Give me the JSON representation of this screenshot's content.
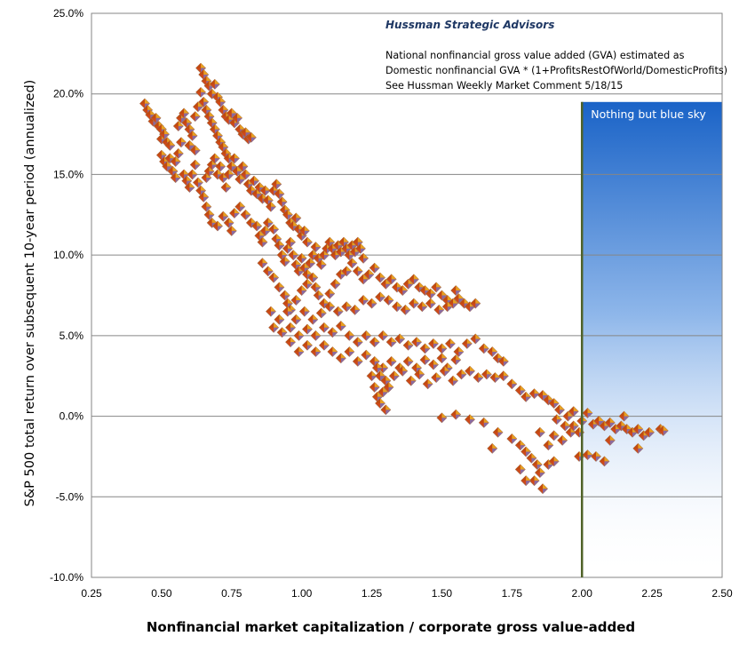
{
  "chart_data": {
    "type": "scatter",
    "title": "",
    "xlabel": "Nonfinancial market capitalization / corporate gross value-added",
    "ylabel": "S&P 500 total return over subsequent 10-year period (annualized)",
    "xlim": [
      0.25,
      2.5
    ],
    "ylim": [
      -0.1,
      0.25
    ],
    "x_ticks": [
      0.25,
      0.5,
      0.75,
      1.0,
      1.25,
      1.5,
      1.75,
      2.0,
      2.25,
      2.5
    ],
    "x_tick_labels": [
      "0.25",
      "0.50",
      "0.75",
      "1.00",
      "1.25",
      "1.50",
      "1.75",
      "2.00",
      "2.25",
      "2.50"
    ],
    "y_ticks": [
      -0.1,
      -0.05,
      0.0,
      0.05,
      0.1,
      0.15,
      0.2,
      0.25
    ],
    "y_tick_labels": [
      "-10.0%",
      "-5.0%",
      "0.0%",
      "5.0%",
      "10.0%",
      "15.0%",
      "20.0%",
      "25.0%"
    ],
    "grid": "horizontal",
    "marker": "diamond",
    "marker_colors": {
      "top": "#e8a020",
      "left": "#c04a10",
      "right": "#8a6aa0",
      "bottom": "#d04818",
      "outline": "#a07050"
    },
    "reference_line": {
      "x": 2.0,
      "color": "#4f6228"
    },
    "shaded_region": {
      "x_from": 2.0,
      "x_to": 2.5,
      "y_from": -0.1,
      "y_to": 0.195,
      "color_top": "#1a63c7",
      "color_bottom": "#ffffff",
      "label": "Nothing but blue sky"
    },
    "annotations": {
      "source": "Hussman Strategic Advisors",
      "lines": [
        "National nonfinancial gross value added (GVA) estimated as",
        "Domestic nonfinancial GVA * (1+ProfitsRestOfWorld/DomesticProfits)",
        "See Hussman Weekly Market Comment  5/18/15"
      ]
    },
    "points": [
      [
        0.44,
        0.194
      ],
      [
        0.45,
        0.19
      ],
      [
        0.46,
        0.187
      ],
      [
        0.47,
        0.183
      ],
      [
        0.48,
        0.185
      ],
      [
        0.49,
        0.18
      ],
      [
        0.5,
        0.178
      ],
      [
        0.5,
        0.172
      ],
      [
        0.51,
        0.175
      ],
      [
        0.52,
        0.17
      ],
      [
        0.53,
        0.168
      ],
      [
        0.5,
        0.162
      ],
      [
        0.51,
        0.158
      ],
      [
        0.52,
        0.155
      ],
      [
        0.53,
        0.16
      ],
      [
        0.54,
        0.152
      ],
      [
        0.55,
        0.148
      ],
      [
        0.55,
        0.158
      ],
      [
        0.56,
        0.163
      ],
      [
        0.57,
        0.17
      ],
      [
        0.56,
        0.18
      ],
      [
        0.57,
        0.185
      ],
      [
        0.58,
        0.188
      ],
      [
        0.59,
        0.182
      ],
      [
        0.6,
        0.178
      ],
      [
        0.6,
        0.168
      ],
      [
        0.61,
        0.174
      ],
      [
        0.62,
        0.165
      ],
      [
        0.62,
        0.186
      ],
      [
        0.63,
        0.192
      ],
      [
        0.64,
        0.201
      ],
      [
        0.64,
        0.216
      ],
      [
        0.65,
        0.212
      ],
      [
        0.66,
        0.208
      ],
      [
        0.67,
        0.205
      ],
      [
        0.68,
        0.2
      ],
      [
        0.69,
        0.206
      ],
      [
        0.7,
        0.198
      ],
      [
        0.71,
        0.195
      ],
      [
        0.72,
        0.19
      ],
      [
        0.73,
        0.186
      ],
      [
        0.74,
        0.184
      ],
      [
        0.75,
        0.188
      ],
      [
        0.76,
        0.182
      ],
      [
        0.77,
        0.185
      ],
      [
        0.78,
        0.178
      ],
      [
        0.79,
        0.175
      ],
      [
        0.8,
        0.176
      ],
      [
        0.81,
        0.172
      ],
      [
        0.82,
        0.173
      ],
      [
        0.65,
        0.195
      ],
      [
        0.66,
        0.19
      ],
      [
        0.67,
        0.186
      ],
      [
        0.68,
        0.182
      ],
      [
        0.69,
        0.178
      ],
      [
        0.7,
        0.174
      ],
      [
        0.71,
        0.17
      ],
      [
        0.72,
        0.167
      ],
      [
        0.73,
        0.163
      ],
      [
        0.74,
        0.16
      ],
      [
        0.58,
        0.15
      ],
      [
        0.59,
        0.146
      ],
      [
        0.6,
        0.142
      ],
      [
        0.61,
        0.15
      ],
      [
        0.62,
        0.156
      ],
      [
        0.63,
        0.145
      ],
      [
        0.64,
        0.14
      ],
      [
        0.65,
        0.136
      ],
      [
        0.66,
        0.148
      ],
      [
        0.67,
        0.152
      ],
      [
        0.68,
        0.156
      ],
      [
        0.69,
        0.16
      ],
      [
        0.7,
        0.15
      ],
      [
        0.71,
        0.155
      ],
      [
        0.72,
        0.148
      ],
      [
        0.73,
        0.142
      ],
      [
        0.74,
        0.15
      ],
      [
        0.75,
        0.155
      ],
      [
        0.76,
        0.16
      ],
      [
        0.77,
        0.152
      ],
      [
        0.78,
        0.147
      ],
      [
        0.79,
        0.155
      ],
      [
        0.8,
        0.15
      ],
      [
        0.81,
        0.144
      ],
      [
        0.82,
        0.14
      ],
      [
        0.83,
        0.146
      ],
      [
        0.84,
        0.138
      ],
      [
        0.85,
        0.142
      ],
      [
        0.86,
        0.135
      ],
      [
        0.87,
        0.14
      ],
      [
        0.88,
        0.134
      ],
      [
        0.89,
        0.13
      ],
      [
        0.9,
        0.14
      ],
      [
        0.91,
        0.144
      ],
      [
        0.92,
        0.138
      ],
      [
        0.93,
        0.133
      ],
      [
        0.94,
        0.128
      ],
      [
        0.95,
        0.125
      ],
      [
        0.96,
        0.12
      ],
      [
        0.97,
        0.118
      ],
      [
        0.98,
        0.123
      ],
      [
        0.99,
        0.116
      ],
      [
        1.0,
        0.112
      ],
      [
        1.01,
        0.115
      ],
      [
        1.02,
        0.108
      ],
      [
        0.66,
        0.13
      ],
      [
        0.67,
        0.125
      ],
      [
        0.68,
        0.12
      ],
      [
        0.7,
        0.118
      ],
      [
        0.72,
        0.124
      ],
      [
        0.74,
        0.12
      ],
      [
        0.75,
        0.115
      ],
      [
        0.76,
        0.126
      ],
      [
        0.78,
        0.13
      ],
      [
        0.8,
        0.125
      ],
      [
        0.82,
        0.12
      ],
      [
        0.84,
        0.118
      ],
      [
        0.85,
        0.112
      ],
      [
        0.86,
        0.108
      ],
      [
        0.87,
        0.115
      ],
      [
        0.88,
        0.12
      ],
      [
        0.9,
        0.116
      ],
      [
        0.91,
        0.11
      ],
      [
        0.92,
        0.106
      ],
      [
        0.93,
        0.1
      ],
      [
        0.94,
        0.096
      ],
      [
        0.95,
        0.104
      ],
      [
        0.96,
        0.108
      ],
      [
        0.97,
        0.1
      ],
      [
        0.98,
        0.094
      ],
      [
        0.99,
        0.09
      ],
      [
        1.0,
        0.098
      ],
      [
        1.01,
        0.092
      ],
      [
        1.02,
        0.088
      ],
      [
        1.03,
        0.095
      ],
      [
        1.04,
        0.1
      ],
      [
        1.05,
        0.105
      ],
      [
        1.06,
        0.098
      ],
      [
        1.07,
        0.094
      ],
      [
        1.08,
        0.1
      ],
      [
        1.09,
        0.104
      ],
      [
        1.1,
        0.108
      ],
      [
        1.11,
        0.104
      ],
      [
        1.12,
        0.1
      ],
      [
        1.13,
        0.106
      ],
      [
        1.14,
        0.102
      ],
      [
        1.15,
        0.108
      ],
      [
        1.16,
        0.104
      ],
      [
        1.17,
        0.1
      ],
      [
        1.18,
        0.106
      ],
      [
        1.19,
        0.102
      ],
      [
        1.2,
        0.108
      ],
      [
        1.21,
        0.104
      ],
      [
        1.22,
        0.098
      ],
      [
        0.86,
        0.095
      ],
      [
        0.88,
        0.09
      ],
      [
        0.9,
        0.086
      ],
      [
        0.92,
        0.08
      ],
      [
        0.94,
        0.075
      ],
      [
        0.95,
        0.07
      ],
      [
        0.96,
        0.066
      ],
      [
        0.98,
        0.072
      ],
      [
        1.0,
        0.078
      ],
      [
        1.02,
        0.082
      ],
      [
        1.04,
        0.086
      ],
      [
        1.05,
        0.08
      ],
      [
        1.06,
        0.075
      ],
      [
        1.08,
        0.07
      ],
      [
        1.1,
        0.076
      ],
      [
        1.12,
        0.082
      ],
      [
        1.14,
        0.088
      ],
      [
        1.16,
        0.09
      ],
      [
        1.18,
        0.095
      ],
      [
        1.2,
        0.09
      ],
      [
        1.22,
        0.085
      ],
      [
        1.24,
        0.088
      ],
      [
        1.26,
        0.092
      ],
      [
        1.28,
        0.086
      ],
      [
        1.3,
        0.082
      ],
      [
        1.32,
        0.085
      ],
      [
        1.34,
        0.08
      ],
      [
        1.36,
        0.078
      ],
      [
        1.38,
        0.082
      ],
      [
        1.4,
        0.085
      ],
      [
        1.42,
        0.08
      ],
      [
        1.44,
        0.078
      ],
      [
        1.46,
        0.076
      ],
      [
        1.48,
        0.08
      ],
      [
        1.5,
        0.075
      ],
      [
        1.52,
        0.072
      ],
      [
        1.54,
        0.07
      ],
      [
        1.56,
        0.073
      ],
      [
        1.58,
        0.07
      ],
      [
        1.6,
        0.068
      ],
      [
        1.62,
        0.07
      ],
      [
        1.55,
        0.078
      ],
      [
        1.52,
        0.068
      ],
      [
        1.49,
        0.066
      ],
      [
        1.46,
        0.07
      ],
      [
        1.43,
        0.068
      ],
      [
        1.4,
        0.07
      ],
      [
        1.37,
        0.066
      ],
      [
        1.34,
        0.068
      ],
      [
        1.31,
        0.072
      ],
      [
        1.28,
        0.074
      ],
      [
        1.25,
        0.07
      ],
      [
        1.22,
        0.072
      ],
      [
        1.19,
        0.066
      ],
      [
        1.16,
        0.068
      ],
      [
        1.13,
        0.065
      ],
      [
        1.1,
        0.068
      ],
      [
        1.07,
        0.064
      ],
      [
        1.04,
        0.06
      ],
      [
        1.01,
        0.065
      ],
      [
        0.98,
        0.06
      ],
      [
        0.95,
        0.065
      ],
      [
        0.92,
        0.06
      ],
      [
        0.89,
        0.065
      ],
      [
        0.9,
        0.055
      ],
      [
        0.93,
        0.052
      ],
      [
        0.96,
        0.055
      ],
      [
        0.99,
        0.05
      ],
      [
        1.02,
        0.054
      ],
      [
        1.05,
        0.05
      ],
      [
        1.08,
        0.055
      ],
      [
        1.11,
        0.052
      ],
      [
        1.14,
        0.056
      ],
      [
        1.17,
        0.05
      ],
      [
        1.2,
        0.046
      ],
      [
        1.23,
        0.05
      ],
      [
        1.26,
        0.046
      ],
      [
        1.29,
        0.05
      ],
      [
        1.32,
        0.046
      ],
      [
        1.35,
        0.048
      ],
      [
        1.38,
        0.044
      ],
      [
        1.41,
        0.046
      ],
      [
        1.44,
        0.042
      ],
      [
        1.47,
        0.045
      ],
      [
        1.5,
        0.042
      ],
      [
        1.53,
        0.045
      ],
      [
        1.56,
        0.04
      ],
      [
        1.59,
        0.045
      ],
      [
        1.62,
        0.048
      ],
      [
        1.65,
        0.042
      ],
      [
        1.68,
        0.04
      ],
      [
        1.7,
        0.036
      ],
      [
        1.72,
        0.034
      ],
      [
        1.55,
        0.035
      ],
      [
        1.52,
        0.03
      ],
      [
        1.5,
        0.036
      ],
      [
        1.47,
        0.032
      ],
      [
        1.44,
        0.035
      ],
      [
        1.41,
        0.03
      ],
      [
        1.38,
        0.034
      ],
      [
        1.35,
        0.03
      ],
      [
        1.32,
        0.034
      ],
      [
        1.29,
        0.03
      ],
      [
        1.26,
        0.034
      ],
      [
        1.23,
        0.038
      ],
      [
        1.2,
        0.034
      ],
      [
        1.17,
        0.04
      ],
      [
        1.14,
        0.036
      ],
      [
        1.11,
        0.04
      ],
      [
        1.08,
        0.044
      ],
      [
        1.05,
        0.04
      ],
      [
        1.02,
        0.044
      ],
      [
        0.99,
        0.04
      ],
      [
        0.96,
        0.046
      ],
      [
        1.25,
        0.025
      ],
      [
        1.26,
        0.018
      ],
      [
        1.27,
        0.012
      ],
      [
        1.28,
        0.008
      ],
      [
        1.29,
        0.015
      ],
      [
        1.3,
        0.022
      ],
      [
        1.3,
        0.004
      ],
      [
        1.28,
        0.025
      ],
      [
        1.31,
        0.018
      ],
      [
        1.27,
        0.03
      ],
      [
        1.33,
        0.025
      ],
      [
        1.36,
        0.028
      ],
      [
        1.39,
        0.022
      ],
      [
        1.42,
        0.026
      ],
      [
        1.45,
        0.02
      ],
      [
        1.48,
        0.024
      ],
      [
        1.51,
        0.028
      ],
      [
        1.54,
        0.022
      ],
      [
        1.57,
        0.026
      ],
      [
        1.6,
        0.028
      ],
      [
        1.63,
        0.024
      ],
      [
        1.66,
        0.026
      ],
      [
        1.69,
        0.024
      ],
      [
        1.72,
        0.025
      ],
      [
        1.75,
        0.02
      ],
      [
        1.78,
        0.016
      ],
      [
        1.8,
        0.012
      ],
      [
        1.83,
        0.014
      ],
      [
        1.86,
        0.013
      ],
      [
        1.88,
        0.01
      ],
      [
        1.9,
        0.008
      ],
      [
        1.92,
        0.004
      ],
      [
        1.95,
        0.0
      ],
      [
        1.97,
        0.003
      ],
      [
        2.0,
        -0.003
      ],
      [
        2.02,
        0.002
      ],
      [
        2.04,
        -0.005
      ],
      [
        2.06,
        -0.003
      ],
      [
        2.08,
        -0.006
      ],
      [
        2.1,
        -0.004
      ],
      [
        2.12,
        -0.008
      ],
      [
        2.14,
        -0.006
      ],
      [
        2.16,
        -0.008
      ],
      [
        2.18,
        -0.01
      ],
      [
        2.2,
        -0.008
      ],
      [
        2.22,
        -0.012
      ],
      [
        2.24,
        -0.01
      ],
      [
        2.28,
        -0.008
      ],
      [
        2.29,
        -0.009
      ],
      [
        2.15,
        0.0
      ],
      [
        2.1,
        -0.015
      ],
      [
        2.05,
        -0.025
      ],
      [
        2.02,
        -0.024
      ],
      [
        2.08,
        -0.028
      ],
      [
        2.2,
        -0.02
      ],
      [
        1.5,
        -0.001
      ],
      [
        1.55,
        0.001
      ],
      [
        1.6,
        -0.002
      ],
      [
        1.65,
        -0.004
      ],
      [
        1.7,
        -0.01
      ],
      [
        1.68,
        -0.02
      ],
      [
        1.75,
        -0.014
      ],
      [
        1.78,
        -0.018
      ],
      [
        1.8,
        -0.022
      ],
      [
        1.82,
        -0.026
      ],
      [
        1.84,
        -0.03
      ],
      [
        1.85,
        -0.035
      ],
      [
        1.83,
        -0.04
      ],
      [
        1.86,
        -0.045
      ],
      [
        1.88,
        -0.03
      ],
      [
        1.9,
        -0.028
      ],
      [
        1.88,
        -0.018
      ],
      [
        1.85,
        -0.01
      ],
      [
        1.9,
        -0.012
      ],
      [
        1.93,
        -0.015
      ],
      [
        1.96,
        -0.01
      ],
      [
        1.99,
        -0.025
      ],
      [
        1.78,
        -0.033
      ],
      [
        1.8,
        -0.04
      ],
      [
        1.97,
        -0.006
      ],
      [
        1.99,
        -0.01
      ],
      [
        1.94,
        -0.006
      ],
      [
        1.91,
        -0.002
      ]
    ]
  }
}
